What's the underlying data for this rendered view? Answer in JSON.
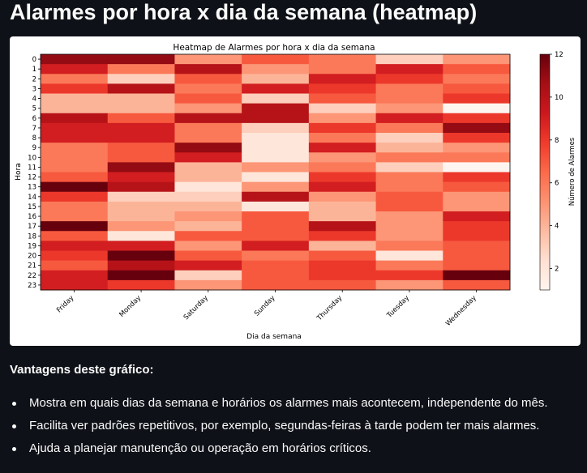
{
  "page": {
    "title": "Alarmes por hora x dia da semana (heatmap)",
    "subheading": "Vantagens deste gráfico:",
    "bullets": [
      "Mostra em quais dias da semana e horários os alarmes mais acontecem, independente do mês.",
      "Facilita ver padrões repetitivos, por exemplo, segundas-feiras à tarde podem ter mais alarmes.",
      "Ajuda a planejar manutenção ou operação em horários críticos."
    ]
  },
  "chart_data": {
    "type": "heatmap",
    "title": "Heatmap de Alarmes por hora x dia da semana",
    "xlabel": "Dia da semana",
    "ylabel": "Hora",
    "colorbar_label": "Número de Alarmes",
    "colormap": "Reds",
    "vmin": 1,
    "vmax": 12,
    "colorbar_ticks": [
      2,
      4,
      6,
      8,
      10,
      12
    ],
    "x": [
      "Friday",
      "Monday",
      "Saturday",
      "Sunday",
      "Thursday",
      "Tuesday",
      "Wednesday"
    ],
    "y": [
      "0",
      "1",
      "2",
      "3",
      "4",
      "5",
      "6",
      "7",
      "8",
      "9",
      "10",
      "11",
      "12",
      "13",
      "14",
      "15",
      "16",
      "17",
      "18",
      "19",
      "20",
      "21",
      "22",
      "23"
    ],
    "values": [
      [
        11,
        11,
        5,
        7,
        6,
        3,
        5
      ],
      [
        9,
        6,
        10,
        5,
        6,
        9,
        7
      ],
      [
        6,
        3,
        7,
        4,
        9,
        8,
        6
      ],
      [
        8,
        10,
        6,
        9,
        8,
        6,
        7
      ],
      [
        4,
        4,
        7,
        3,
        7,
        6,
        8
      ],
      [
        4,
        4,
        5,
        10,
        3,
        5,
        1
      ],
      [
        10,
        7,
        10,
        10,
        5,
        9,
        8
      ],
      [
        9,
        9,
        6,
        3,
        8,
        6,
        11
      ],
      [
        9,
        9,
        6,
        2,
        6,
        3,
        8
      ],
      [
        6,
        7,
        11,
        2,
        9,
        4,
        5
      ],
      [
        6,
        7,
        9,
        2,
        5,
        6,
        6
      ],
      [
        6,
        11,
        4,
        5,
        6,
        3,
        1
      ],
      [
        7,
        9,
        4,
        2,
        8,
        6,
        8
      ],
      [
        12,
        10,
        2,
        5,
        9,
        6,
        7
      ],
      [
        8,
        3,
        3,
        10,
        5,
        7,
        5
      ],
      [
        6,
        4,
        4,
        2,
        4,
        7,
        5
      ],
      [
        6,
        4,
        5,
        7,
        4,
        5,
        9
      ],
      [
        12,
        5,
        4,
        7,
        10,
        5,
        8
      ],
      [
        7,
        2,
        7,
        7,
        8,
        5,
        8
      ],
      [
        9,
        9,
        5,
        9,
        4,
        6,
        7
      ],
      [
        8,
        12,
        7,
        6,
        7,
        2,
        7
      ],
      [
        7,
        10,
        9,
        7,
        8,
        6,
        7
      ],
      [
        9,
        12,
        3,
        7,
        8,
        8,
        12
      ],
      [
        9,
        8,
        5,
        7,
        7,
        5,
        7
      ]
    ]
  }
}
